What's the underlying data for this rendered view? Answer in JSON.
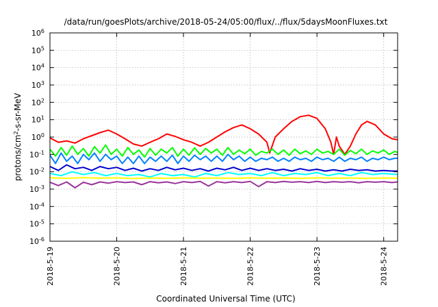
{
  "chart_data": {
    "type": "line",
    "title": "/data/run/goesPlots/archive/2018-05-24/05:00/flux/../flux/5daysMoonFluxes.txt",
    "xlabel": "Coordinated Universal Time (UTC)",
    "ylabel_parts": {
      "pre": "protons/cm",
      "sup": "2",
      "post": "-s-sr-MeV"
    },
    "y_scale": "log",
    "ylim": [
      1e-06,
      1000000
    ],
    "y_tick_exponents": [
      -6,
      -5,
      -4,
      -3,
      -2,
      -1,
      0,
      1,
      2,
      3,
      4,
      5,
      6
    ],
    "y_tick_base": "10",
    "xlim": [
      "2018-05-19T00:00",
      "2018-05-24T05:00"
    ],
    "x_ticks": [
      "2018-5-19",
      "2018-5-20",
      "2018-5-21",
      "2018-5-22",
      "2018-5-23",
      "2018-5-24"
    ],
    "grid": true,
    "series": [
      {
        "color": "#ff0000",
        "x": [
          "2018-05-19T00:00",
          "2018-05-19T03:00",
          "2018-05-19T06:00",
          "2018-05-19T09:00",
          "2018-05-19T12:00",
          "2018-05-19T15:00",
          "2018-05-19T18:00",
          "2018-05-19T21:00",
          "2018-05-20T00:00",
          "2018-05-20T03:00",
          "2018-05-20T06:00",
          "2018-05-20T09:00",
          "2018-05-20T12:00",
          "2018-05-20T15:00",
          "2018-05-20T18:00",
          "2018-05-20T21:00",
          "2018-05-21T00:00",
          "2018-05-21T03:00",
          "2018-05-21T06:00",
          "2018-05-21T09:00",
          "2018-05-21T12:00",
          "2018-05-21T15:00",
          "2018-05-21T18:00",
          "2018-05-21T21:00",
          "2018-05-22T00:00",
          "2018-05-22T03:00",
          "2018-05-22T06:00",
          "2018-05-22T07:00",
          "2018-05-22T09:00",
          "2018-05-22T12:00",
          "2018-05-22T15:00",
          "2018-05-22T18:00",
          "2018-05-22T21:00",
          "2018-05-23T00:00",
          "2018-05-23T03:00",
          "2018-05-23T05:00",
          "2018-05-23T06:00",
          "2018-05-23T07:00",
          "2018-05-23T08:00",
          "2018-05-23T10:00",
          "2018-05-23T12:00",
          "2018-05-23T14:00",
          "2018-05-23T16:00",
          "2018-05-23T18:00",
          "2018-05-23T21:00",
          "2018-05-24T00:00",
          "2018-05-24T03:00",
          "2018-05-24T05:00"
        ],
        "values": [
          0.9,
          0.5,
          0.6,
          0.45,
          0.8,
          1.2,
          1.8,
          2.5,
          1.5,
          0.8,
          0.4,
          0.3,
          0.5,
          0.8,
          1.5,
          1.1,
          0.7,
          0.5,
          0.3,
          0.5,
          1.0,
          2.0,
          3.5,
          5.0,
          3.0,
          1.5,
          0.5,
          0.12,
          1.0,
          3.0,
          8.0,
          15.0,
          18.0,
          12.0,
          3.0,
          0.5,
          0.1,
          1.0,
          0.3,
          0.1,
          0.3,
          1.5,
          5.0,
          8.0,
          5.0,
          1.5,
          0.8,
          0.7
        ]
      },
      {
        "color": "#00ff00",
        "x": [
          "2018-05-19T00:00",
          "2018-05-19T02:00",
          "2018-05-19T04:00",
          "2018-05-19T06:00",
          "2018-05-19T08:00",
          "2018-05-19T10:00",
          "2018-05-19T12:00",
          "2018-05-19T14:00",
          "2018-05-19T16:00",
          "2018-05-19T18:00",
          "2018-05-19T20:00",
          "2018-05-19T22:00",
          "2018-05-20T00:00",
          "2018-05-20T02:00",
          "2018-05-20T04:00",
          "2018-05-20T06:00",
          "2018-05-20T08:00",
          "2018-05-20T10:00",
          "2018-05-20T12:00",
          "2018-05-20T14:00",
          "2018-05-20T16:00",
          "2018-05-20T18:00",
          "2018-05-20T20:00",
          "2018-05-20T22:00",
          "2018-05-21T00:00",
          "2018-05-21T02:00",
          "2018-05-21T04:00",
          "2018-05-21T06:00",
          "2018-05-21T08:00",
          "2018-05-21T10:00",
          "2018-05-21T12:00",
          "2018-05-21T14:00",
          "2018-05-21T16:00",
          "2018-05-21T18:00",
          "2018-05-21T20:00",
          "2018-05-21T22:00",
          "2018-05-22T00:00",
          "2018-05-22T02:00",
          "2018-05-22T04:00",
          "2018-05-22T06:00",
          "2018-05-22T08:00",
          "2018-05-22T10:00",
          "2018-05-22T12:00",
          "2018-05-22T14:00",
          "2018-05-22T16:00",
          "2018-05-22T18:00",
          "2018-05-22T20:00",
          "2018-05-22T22:00",
          "2018-05-23T00:00",
          "2018-05-23T02:00",
          "2018-05-23T04:00",
          "2018-05-23T06:00",
          "2018-05-23T08:00",
          "2018-05-23T10:00",
          "2018-05-23T12:00",
          "2018-05-23T14:00",
          "2018-05-23T16:00",
          "2018-05-23T18:00",
          "2018-05-23T20:00",
          "2018-05-23T22:00",
          "2018-05-24T00:00",
          "2018-05-24T02:00",
          "2018-05-24T04:00",
          "2018-05-24T05:00"
        ],
        "values": [
          0.2,
          0.08,
          0.25,
          0.09,
          0.3,
          0.1,
          0.22,
          0.08,
          0.28,
          0.12,
          0.35,
          0.1,
          0.2,
          0.08,
          0.25,
          0.1,
          0.18,
          0.07,
          0.22,
          0.09,
          0.2,
          0.12,
          0.25,
          0.08,
          0.2,
          0.09,
          0.24,
          0.1,
          0.22,
          0.12,
          0.2,
          0.09,
          0.25,
          0.1,
          0.18,
          0.11,
          0.2,
          0.09,
          0.15,
          0.12,
          0.2,
          0.1,
          0.18,
          0.09,
          0.2,
          0.11,
          0.16,
          0.1,
          0.2,
          0.12,
          0.15,
          0.1,
          0.2,
          0.09,
          0.17,
          0.11,
          0.2,
          0.1,
          0.16,
          0.12,
          0.18,
          0.1,
          0.15,
          0.13
        ]
      },
      {
        "color": "#00ffff",
        "x": [
          "2018-05-19T00:00",
          "2018-05-19T04:00",
          "2018-05-19T08:00",
          "2018-05-19T12:00",
          "2018-05-19T16:00",
          "2018-05-19T20:00",
          "2018-05-20T00:00",
          "2018-05-20T04:00",
          "2018-05-20T08:00",
          "2018-05-20T12:00",
          "2018-05-20T16:00",
          "2018-05-20T20:00",
          "2018-05-21T00:00",
          "2018-05-21T04:00",
          "2018-05-21T08:00",
          "2018-05-21T12:00",
          "2018-05-21T16:00",
          "2018-05-21T20:00",
          "2018-05-22T00:00",
          "2018-05-22T04:00",
          "2018-05-22T08:00",
          "2018-05-22T12:00",
          "2018-05-22T16:00",
          "2018-05-22T20:00",
          "2018-05-23T00:00",
          "2018-05-23T04:00",
          "2018-05-23T08:00",
          "2018-05-23T12:00",
          "2018-05-23T16:00",
          "2018-05-23T20:00",
          "2018-05-24T00:00",
          "2018-05-24T05:00"
        ],
        "values": [
          0.008,
          0.006,
          0.01,
          0.007,
          0.009,
          0.006,
          0.008,
          0.006,
          0.007,
          0.005,
          0.008,
          0.006,
          0.007,
          0.005,
          0.008,
          0.006,
          0.009,
          0.007,
          0.008,
          0.006,
          0.009,
          0.006,
          0.008,
          0.007,
          0.009,
          0.006,
          0.008,
          0.006,
          0.009,
          0.007,
          0.008,
          0.007
        ]
      },
      {
        "color": "#0080ff",
        "x": [
          "2018-05-19T00:00",
          "2018-05-19T02:00",
          "2018-05-19T04:00",
          "2018-05-19T06:00",
          "2018-05-19T08:00",
          "2018-05-19T10:00",
          "2018-05-19T12:00",
          "2018-05-19T14:00",
          "2018-05-19T16:00",
          "2018-05-19T18:00",
          "2018-05-19T20:00",
          "2018-05-19T22:00",
          "2018-05-20T00:00",
          "2018-05-20T02:00",
          "2018-05-20T04:00",
          "2018-05-20T06:00",
          "2018-05-20T08:00",
          "2018-05-20T10:00",
          "2018-05-20T12:00",
          "2018-05-20T14:00",
          "2018-05-20T16:00",
          "2018-05-20T18:00",
          "2018-05-20T20:00",
          "2018-05-20T22:00",
          "2018-05-21T00:00",
          "2018-05-21T02:00",
          "2018-05-21T04:00",
          "2018-05-21T06:00",
          "2018-05-21T08:00",
          "2018-05-21T10:00",
          "2018-05-21T12:00",
          "2018-05-21T14:00",
          "2018-05-21T16:00",
          "2018-05-21T18:00",
          "2018-05-21T20:00",
          "2018-05-21T22:00",
          "2018-05-22T00:00",
          "2018-05-22T02:00",
          "2018-05-22T04:00",
          "2018-05-22T06:00",
          "2018-05-22T08:00",
          "2018-05-22T10:00",
          "2018-05-22T12:00",
          "2018-05-22T14:00",
          "2018-05-22T16:00",
          "2018-05-22T18:00",
          "2018-05-22T20:00",
          "2018-05-22T22:00",
          "2018-05-23T00:00",
          "2018-05-23T02:00",
          "2018-05-23T04:00",
          "2018-05-23T06:00",
          "2018-05-23T08:00",
          "2018-05-23T10:00",
          "2018-05-23T12:00",
          "2018-05-23T14:00",
          "2018-05-23T16:00",
          "2018-05-23T18:00",
          "2018-05-23T20:00",
          "2018-05-23T22:00",
          "2018-05-24T00:00",
          "2018-05-24T02:00",
          "2018-05-24T04:00",
          "2018-05-24T05:00"
        ],
        "values": [
          0.09,
          0.03,
          0.12,
          0.04,
          0.08,
          0.03,
          0.1,
          0.05,
          0.12,
          0.04,
          0.1,
          0.05,
          0.08,
          0.03,
          0.07,
          0.03,
          0.08,
          0.03,
          0.07,
          0.04,
          0.08,
          0.04,
          0.09,
          0.03,
          0.08,
          0.04,
          0.09,
          0.05,
          0.08,
          0.04,
          0.08,
          0.04,
          0.1,
          0.05,
          0.08,
          0.04,
          0.07,
          0.04,
          0.06,
          0.05,
          0.07,
          0.04,
          0.06,
          0.04,
          0.07,
          0.05,
          0.06,
          0.04,
          0.07,
          0.05,
          0.06,
          0.04,
          0.07,
          0.04,
          0.06,
          0.05,
          0.07,
          0.04,
          0.06,
          0.05,
          0.07,
          0.05,
          0.06,
          0.06
        ]
      },
      {
        "color": "#0000cc",
        "x": [
          "2018-05-19T00:00",
          "2018-05-19T03:00",
          "2018-05-19T06:00",
          "2018-05-19T09:00",
          "2018-05-19T12:00",
          "2018-05-19T15:00",
          "2018-05-19T18:00",
          "2018-05-19T21:00",
          "2018-05-20T00:00",
          "2018-05-20T03:00",
          "2018-05-20T06:00",
          "2018-05-20T09:00",
          "2018-05-20T12:00",
          "2018-05-20T15:00",
          "2018-05-20T18:00",
          "2018-05-20T21:00",
          "2018-05-21T00:00",
          "2018-05-21T03:00",
          "2018-05-21T06:00",
          "2018-05-21T09:00",
          "2018-05-21T12:00",
          "2018-05-21T15:00",
          "2018-05-21T18:00",
          "2018-05-21T21:00",
          "2018-05-22T00:00",
          "2018-05-22T03:00",
          "2018-05-22T06:00",
          "2018-05-22T09:00",
          "2018-05-22T12:00",
          "2018-05-22T15:00",
          "2018-05-22T18:00",
          "2018-05-22T21:00",
          "2018-05-23T00:00",
          "2018-05-23T03:00",
          "2018-05-23T06:00",
          "2018-05-23T09:00",
          "2018-05-23T12:00",
          "2018-05-23T15:00",
          "2018-05-23T18:00",
          "2018-05-23T21:00",
          "2018-05-24T00:00",
          "2018-05-24T03:00",
          "2018-05-24T05:00"
        ],
        "values": [
          0.02,
          0.012,
          0.025,
          0.015,
          0.018,
          0.012,
          0.02,
          0.015,
          0.018,
          0.012,
          0.016,
          0.011,
          0.015,
          0.012,
          0.018,
          0.013,
          0.016,
          0.012,
          0.015,
          0.011,
          0.016,
          0.013,
          0.018,
          0.012,
          0.016,
          0.012,
          0.015,
          0.012,
          0.014,
          0.011,
          0.015,
          0.012,
          0.014,
          0.011,
          0.013,
          0.011,
          0.014,
          0.012,
          0.013,
          0.011,
          0.012,
          0.011,
          0.011
        ]
      },
      {
        "color": "#ffff00",
        "x": [
          "2018-05-19T00:00",
          "2018-05-19T06:00",
          "2018-05-19T12:00",
          "2018-05-19T18:00",
          "2018-05-20T00:00",
          "2018-05-20T06:00",
          "2018-05-20T12:00",
          "2018-05-20T18:00",
          "2018-05-21T00:00",
          "2018-05-21T06:00",
          "2018-05-21T12:00",
          "2018-05-21T18:00",
          "2018-05-22T00:00",
          "2018-05-22T06:00",
          "2018-05-22T12:00",
          "2018-05-22T18:00",
          "2018-05-23T00:00",
          "2018-05-23T06:00",
          "2018-05-23T12:00",
          "2018-05-23T18:00",
          "2018-05-24T00:00",
          "2018-05-24T05:00"
        ],
        "values": [
          0.0045,
          0.0042,
          0.0046,
          0.0043,
          0.0045,
          0.0041,
          0.0044,
          0.0042,
          0.0045,
          0.0043,
          0.0044,
          0.0042,
          0.0045,
          0.0043,
          0.0044,
          0.0042,
          0.0045,
          0.0043,
          0.0044,
          0.0042,
          0.0044,
          0.0043
        ]
      },
      {
        "color": "#993399",
        "x": [
          "2018-05-19T00:00",
          "2018-05-19T03:00",
          "2018-05-19T06:00",
          "2018-05-19T09:00",
          "2018-05-19T12:00",
          "2018-05-19T15:00",
          "2018-05-19T18:00",
          "2018-05-19T21:00",
          "2018-05-20T00:00",
          "2018-05-20T03:00",
          "2018-05-20T06:00",
          "2018-05-20T09:00",
          "2018-05-20T12:00",
          "2018-05-20T15:00",
          "2018-05-20T18:00",
          "2018-05-20T21:00",
          "2018-05-21T00:00",
          "2018-05-21T03:00",
          "2018-05-21T06:00",
          "2018-05-21T09:00",
          "2018-05-21T12:00",
          "2018-05-21T15:00",
          "2018-05-21T18:00",
          "2018-05-21T21:00",
          "2018-05-22T00:00",
          "2018-05-22T03:00",
          "2018-05-22T06:00",
          "2018-05-22T09:00",
          "2018-05-22T12:00",
          "2018-05-22T15:00",
          "2018-05-22T18:00",
          "2018-05-22T21:00",
          "2018-05-23T00:00",
          "2018-05-23T03:00",
          "2018-05-23T06:00",
          "2018-05-23T09:00",
          "2018-05-23T12:00",
          "2018-05-23T15:00",
          "2018-05-23T18:00",
          "2018-05-23T21:00",
          "2018-05-24T00:00",
          "2018-05-24T03:00",
          "2018-05-24T05:00"
        ],
        "values": [
          0.0025,
          0.0016,
          0.0026,
          0.0012,
          0.0025,
          0.0018,
          0.0026,
          0.0022,
          0.0027,
          0.0024,
          0.0026,
          0.0018,
          0.0027,
          0.0023,
          0.0026,
          0.0021,
          0.0027,
          0.0024,
          0.0028,
          0.0015,
          0.0027,
          0.0023,
          0.0027,
          0.0024,
          0.0028,
          0.0014,
          0.0027,
          0.0024,
          0.0028,
          0.0025,
          0.0027,
          0.0024,
          0.0028,
          0.0024,
          0.0027,
          0.0025,
          0.0027,
          0.0023,
          0.0027,
          0.0025,
          0.0027,
          0.0024,
          0.0026
        ]
      }
    ]
  }
}
